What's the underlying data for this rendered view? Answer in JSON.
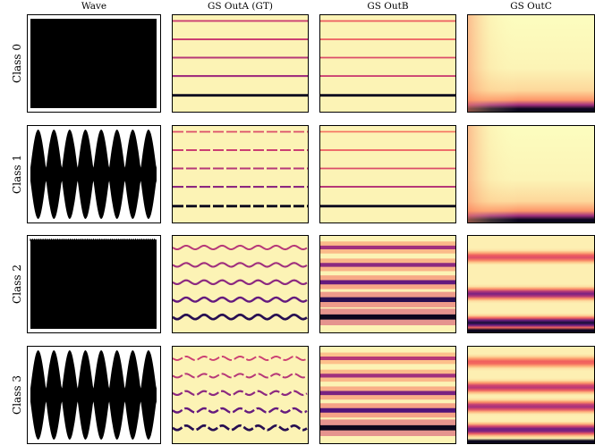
{
  "columns": [
    "Wave",
    "GS OutA (GT)",
    "GS OutB",
    "GS OutC"
  ],
  "rows": [
    "Class 0",
    "Class 1",
    "Class 2",
    "Class 3"
  ],
  "colors": {
    "background": "#fcf3b5",
    "wave": "#000000",
    "colormap": [
      "#fcfdbf",
      "#feca8d",
      "#fd9668",
      "#f1605d",
      "#cd4071",
      "#9e2f7f",
      "#721f81",
      "#440f76",
      "#180f3d",
      "#000004"
    ]
  },
  "chart_data": {
    "type": "heatmap",
    "panels": [
      {
        "class": "Class 0",
        "wave": {
          "amplitude_envelope": "constant",
          "modulation_cycles": 0
        },
        "GS OutA (GT)": {
          "bands": [
            0.94,
            0.75,
            0.56,
            0.37,
            0.17
          ],
          "intensity": [
            0.45,
            0.45,
            0.5,
            0.55,
            0.95
          ],
          "wavy": false
        },
        "GS OutB": {
          "bands": [
            0.94,
            0.75,
            0.56,
            0.37,
            0.17
          ],
          "intensity": [
            0.35,
            0.35,
            0.4,
            0.45,
            0.95
          ],
          "wavy": false
        },
        "GS OutC": {
          "type": "low-frequency-energy",
          "bottom_intensity": 0.95,
          "spread": 0.4
        }
      },
      {
        "class": "Class 1",
        "wave": {
          "amplitude_envelope": "modulated",
          "modulation_cycles": 8
        },
        "GS OutA (GT)": {
          "bands": [
            0.94,
            0.75,
            0.56,
            0.37,
            0.17
          ],
          "intensity": [
            0.4,
            0.45,
            0.5,
            0.6,
            0.95
          ],
          "wavy": false,
          "dashed": true
        },
        "GS OutB": {
          "bands": [
            0.94,
            0.75,
            0.56,
            0.37,
            0.17
          ],
          "intensity": [
            0.3,
            0.35,
            0.4,
            0.5,
            0.95
          ],
          "wavy": false
        },
        "GS OutC": {
          "type": "low-frequency-energy",
          "bottom_intensity": 0.95,
          "spread": 0.4
        }
      },
      {
        "class": "Class 2",
        "wave": {
          "amplitude_envelope": "constant",
          "modulation_cycles": 0
        },
        "GS OutA (GT)": {
          "bands": [
            0.88,
            0.7,
            0.52,
            0.34,
            0.16
          ],
          "intensity": [
            0.5,
            0.55,
            0.6,
            0.7,
            0.85
          ],
          "wavy": true
        },
        "GS OutB": {
          "bands": [
            0.88,
            0.7,
            0.52,
            0.34,
            0.16
          ],
          "intensity": [
            0.55,
            0.6,
            0.7,
            0.85,
            0.95
          ],
          "wavy": false,
          "wide": true
        },
        "GS OutC": {
          "type": "band-energy",
          "bands": [
            0.78,
            0.4,
            0.1
          ],
          "intensity": [
            0.4,
            0.65,
            0.9
          ]
        }
      },
      {
        "class": "Class 3",
        "wave": {
          "amplitude_envelope": "modulated",
          "modulation_cycles": 8
        },
        "GS OutA (GT)": {
          "bands": [
            0.88,
            0.7,
            0.52,
            0.34,
            0.16
          ],
          "intensity": [
            0.45,
            0.5,
            0.6,
            0.7,
            0.85
          ],
          "wavy": true,
          "dashed": true
        },
        "GS OutB": {
          "bands": [
            0.88,
            0.7,
            0.52,
            0.34,
            0.16
          ],
          "intensity": [
            0.5,
            0.55,
            0.65,
            0.75,
            0.95
          ],
          "wavy": false,
          "wide": true
        },
        "GS OutC": {
          "type": "band-energy",
          "bands": [
            0.84,
            0.58,
            0.38,
            0.14
          ],
          "intensity": [
            0.35,
            0.5,
            0.55,
            0.7
          ]
        }
      }
    ]
  }
}
